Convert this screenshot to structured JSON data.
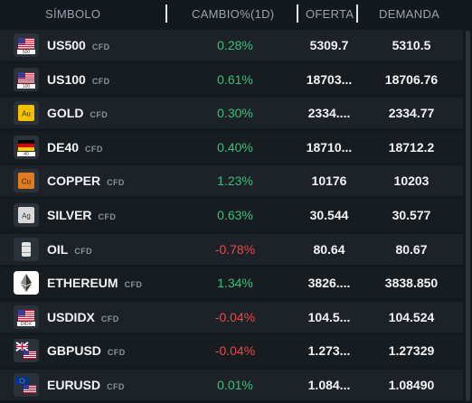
{
  "header": {
    "symbol": "SÍMBOLO",
    "change": "CAMBIO%(1D)",
    "bid": "OFERTA",
    "ask": "DEMANDA"
  },
  "colors": {
    "positive": "#35c27a",
    "negative": "#f04848",
    "background": "#14191f"
  },
  "rows": [
    {
      "symbol": "US500",
      "type": "CFD",
      "change": "0.28%",
      "direction": "up",
      "bid": "5309.7",
      "ask": "5310.5",
      "icon": "us-flag-icon",
      "sub": "500"
    },
    {
      "symbol": "US100",
      "type": "CFD",
      "change": "0.61%",
      "direction": "up",
      "bid": "18703...",
      "ask": "18706.76",
      "icon": "us-flag-icon",
      "sub": "100"
    },
    {
      "symbol": "GOLD",
      "type": "CFD",
      "change": "0.30%",
      "direction": "up",
      "bid": "2334....",
      "ask": "2334.77",
      "icon": "gold-element-icon",
      "sub": "Au"
    },
    {
      "symbol": "DE40",
      "type": "CFD",
      "change": "0.40%",
      "direction": "up",
      "bid": "18710...",
      "ask": "18712.2",
      "icon": "germany-flag-icon",
      "sub": "40"
    },
    {
      "symbol": "COPPER",
      "type": "CFD",
      "change": "1.23%",
      "direction": "up",
      "bid": "10176",
      "ask": "10203",
      "icon": "copper-element-icon",
      "sub": "Cu"
    },
    {
      "symbol": "SILVER",
      "type": "CFD",
      "change": "0.63%",
      "direction": "up",
      "bid": "30.544",
      "ask": "30.577",
      "icon": "silver-element-icon",
      "sub": "Ag"
    },
    {
      "symbol": "OIL",
      "type": "CFD",
      "change": "-0.78%",
      "direction": "down",
      "bid": "80.64",
      "ask": "80.67",
      "icon": "oil-barrel-icon",
      "sub": ""
    },
    {
      "symbol": "ETHEREUM",
      "type": "CFD",
      "change": "1.34%",
      "direction": "up",
      "bid": "3826....",
      "ask": "3838.850",
      "icon": "ethereum-logo-icon",
      "sub": ""
    },
    {
      "symbol": "USDIDX",
      "type": "CFD",
      "change": "-0.04%",
      "direction": "down",
      "bid": "104.5...",
      "ask": "104.524",
      "icon": "us-flag-icon",
      "sub": "DIDX"
    },
    {
      "symbol": "GBPUSD",
      "type": "CFD",
      "change": "-0.04%",
      "direction": "down",
      "bid": "1.273...",
      "ask": "1.27329",
      "icon": "gb-us-flags-icon",
      "sub": ""
    },
    {
      "symbol": "EURUSD",
      "type": "CFD",
      "change": "0.01%",
      "direction": "up",
      "bid": "1.084...",
      "ask": "1.08490",
      "icon": "eu-us-flags-icon",
      "sub": ""
    }
  ]
}
